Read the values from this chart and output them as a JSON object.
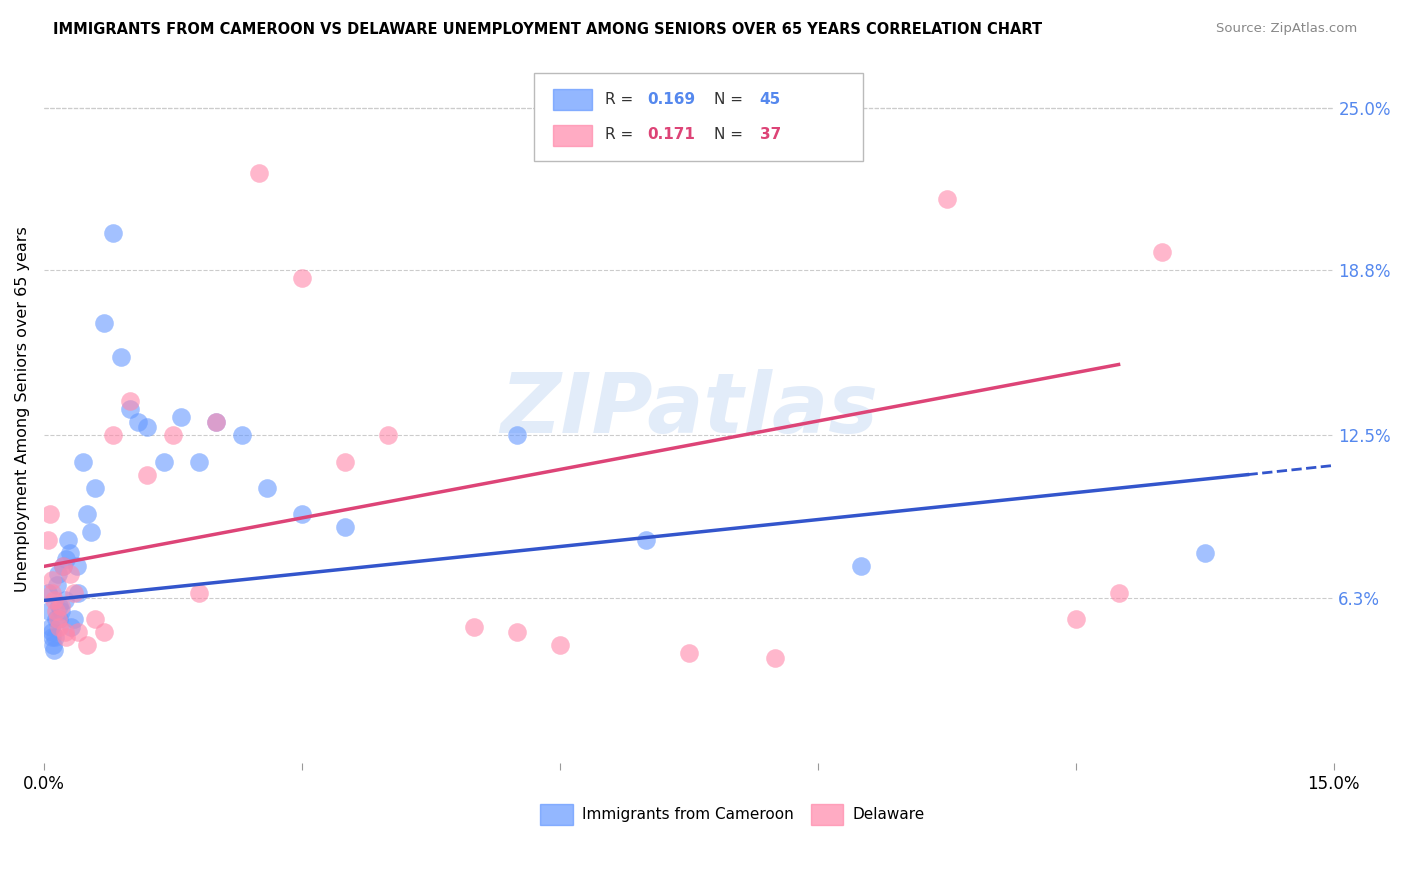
{
  "title": "IMMIGRANTS FROM CAMEROON VS DELAWARE UNEMPLOYMENT AMONG SENIORS OVER 65 YEARS CORRELATION CHART",
  "source": "Source: ZipAtlas.com",
  "ylabel": "Unemployment Among Seniors over 65 years",
  "x_min": 0.0,
  "x_max": 15.0,
  "y_min": 0.0,
  "y_max": 27.0,
  "y_ticks_right": [
    6.3,
    12.5,
    18.8,
    25.0
  ],
  "y_tick_labels_right": [
    "6.3%",
    "12.5%",
    "18.8%",
    "25.0%"
  ],
  "legend_label_blue": "Immigrants from Cameroon",
  "legend_label_pink": "Delaware",
  "r_blue": "0.169",
  "n_blue": "45",
  "r_pink": "0.171",
  "n_pink": "37",
  "blue_color": "#6699ff",
  "pink_color": "#ff88aa",
  "blue_line_color": "#3355cc",
  "pink_line_color": "#dd4477",
  "watermark": "ZIPatlas",
  "blue_line_x0": 0.0,
  "blue_line_y0": 6.2,
  "blue_line_x1": 14.0,
  "blue_line_y1": 11.0,
  "blue_dash_x0": 14.0,
  "blue_dash_y0": 11.0,
  "blue_dash_x1": 15.0,
  "blue_dash_y1": 11.35,
  "pink_line_x0": 0.0,
  "pink_line_y0": 7.5,
  "pink_line_x1": 12.5,
  "pink_line_y1": 15.2,
  "blue_scatter_x": [
    0.05,
    0.06,
    0.08,
    0.09,
    0.1,
    0.11,
    0.12,
    0.13,
    0.14,
    0.15,
    0.16,
    0.17,
    0.18,
    0.2,
    0.22,
    0.24,
    0.26,
    0.28,
    0.3,
    0.32,
    0.35,
    0.38,
    0.4,
    0.45,
    0.5,
    0.55,
    0.6,
    0.7,
    0.8,
    0.9,
    1.0,
    1.1,
    1.2,
    1.4,
    1.6,
    1.8,
    2.0,
    2.3,
    2.6,
    3.0,
    3.5,
    5.5,
    7.0,
    9.5,
    13.5
  ],
  "blue_scatter_y": [
    6.5,
    5.8,
    5.2,
    5.0,
    4.8,
    4.5,
    4.3,
    4.8,
    5.5,
    6.8,
    7.2,
    6.0,
    5.5,
    5.8,
    7.5,
    6.2,
    7.8,
    8.5,
    8.0,
    5.2,
    5.5,
    7.5,
    6.5,
    11.5,
    9.5,
    8.8,
    10.5,
    16.8,
    20.2,
    15.5,
    13.5,
    13.0,
    12.8,
    11.5,
    13.2,
    11.5,
    13.0,
    12.5,
    10.5,
    9.5,
    9.0,
    12.5,
    8.5,
    7.5,
    8.0
  ],
  "pink_scatter_x": [
    0.05,
    0.07,
    0.09,
    0.1,
    0.12,
    0.14,
    0.16,
    0.18,
    0.2,
    0.22,
    0.24,
    0.26,
    0.3,
    0.35,
    0.4,
    0.5,
    0.6,
    0.7,
    0.8,
    1.0,
    1.2,
    1.5,
    1.8,
    2.0,
    2.5,
    3.0,
    3.5,
    4.0,
    5.0,
    5.5,
    6.0,
    7.5,
    8.5,
    10.5,
    12.0,
    12.5,
    13.0
  ],
  "pink_scatter_y": [
    8.5,
    9.5,
    7.0,
    6.5,
    6.2,
    5.8,
    5.5,
    5.2,
    6.0,
    7.5,
    5.0,
    4.8,
    7.2,
    6.5,
    5.0,
    4.5,
    5.5,
    5.0,
    12.5,
    13.8,
    11.0,
    12.5,
    6.5,
    13.0,
    22.5,
    18.5,
    11.5,
    12.5,
    5.2,
    5.0,
    4.5,
    4.2,
    4.0,
    21.5,
    5.5,
    6.5,
    19.5
  ]
}
